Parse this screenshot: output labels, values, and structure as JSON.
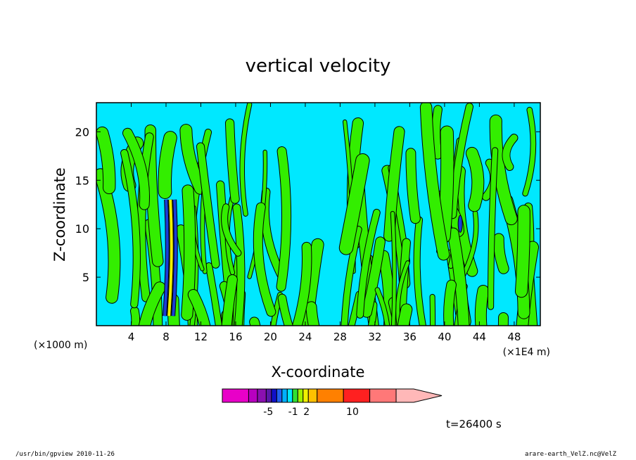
{
  "chart_data": {
    "type": "heatmap",
    "title": "vertical velocity",
    "xlabel": "X-coordinate",
    "ylabel": "Z-coordinate",
    "x_unit_left": "(×1000 m)",
    "x_unit_right": "(×1E4 m)",
    "xlim": [
      0,
      51
    ],
    "ylim": [
      0,
      23
    ],
    "x_ticks": [
      "4",
      "8",
      "12",
      "16",
      "20",
      "24",
      "28",
      "32",
      "36",
      "40",
      "44",
      "48"
    ],
    "x_tick_values": [
      4,
      8,
      12,
      16,
      20,
      24,
      28,
      32,
      36,
      40,
      44,
      48
    ],
    "y_ticks": [
      "5",
      "10",
      "15",
      "20"
    ],
    "y_tick_values": [
      5,
      10,
      15,
      20
    ],
    "colorbar": {
      "colors": [
        "#e800c8",
        "#b800c0",
        "#8a10b0",
        "#5a18a8",
        "#1010c8",
        "#2060f0",
        "#00b0ff",
        "#00e8ff",
        "#30e030",
        "#a0f000",
        "#f0f000",
        "#ffc000",
        "#ff8000",
        "#ff2020",
        "#ff7878",
        "#ffb8b8"
      ],
      "widths": [
        3,
        1,
        1,
        0.6,
        0.6,
        0.6,
        0.6,
        0.6,
        0.6,
        0.6,
        0.6,
        1,
        3,
        3,
        3,
        2
      ],
      "tick_labels": [
        "-5",
        "-1",
        "2",
        "10"
      ],
      "tick_positions": [
        0.24,
        0.37,
        0.44,
        0.68
      ]
    },
    "field_colors": {
      "positive": "#33ee00",
      "negative": "#00e8ff",
      "strong_negative": "#1a3cd8",
      "strong_positive": "#f0f000",
      "contour": "#000000"
    },
    "time_label": "t=26400 s"
  },
  "footer": {
    "left": "/usr/bin/gpview  2010-11-26",
    "right": "arare-earth_VelZ.nc@VelZ"
  }
}
